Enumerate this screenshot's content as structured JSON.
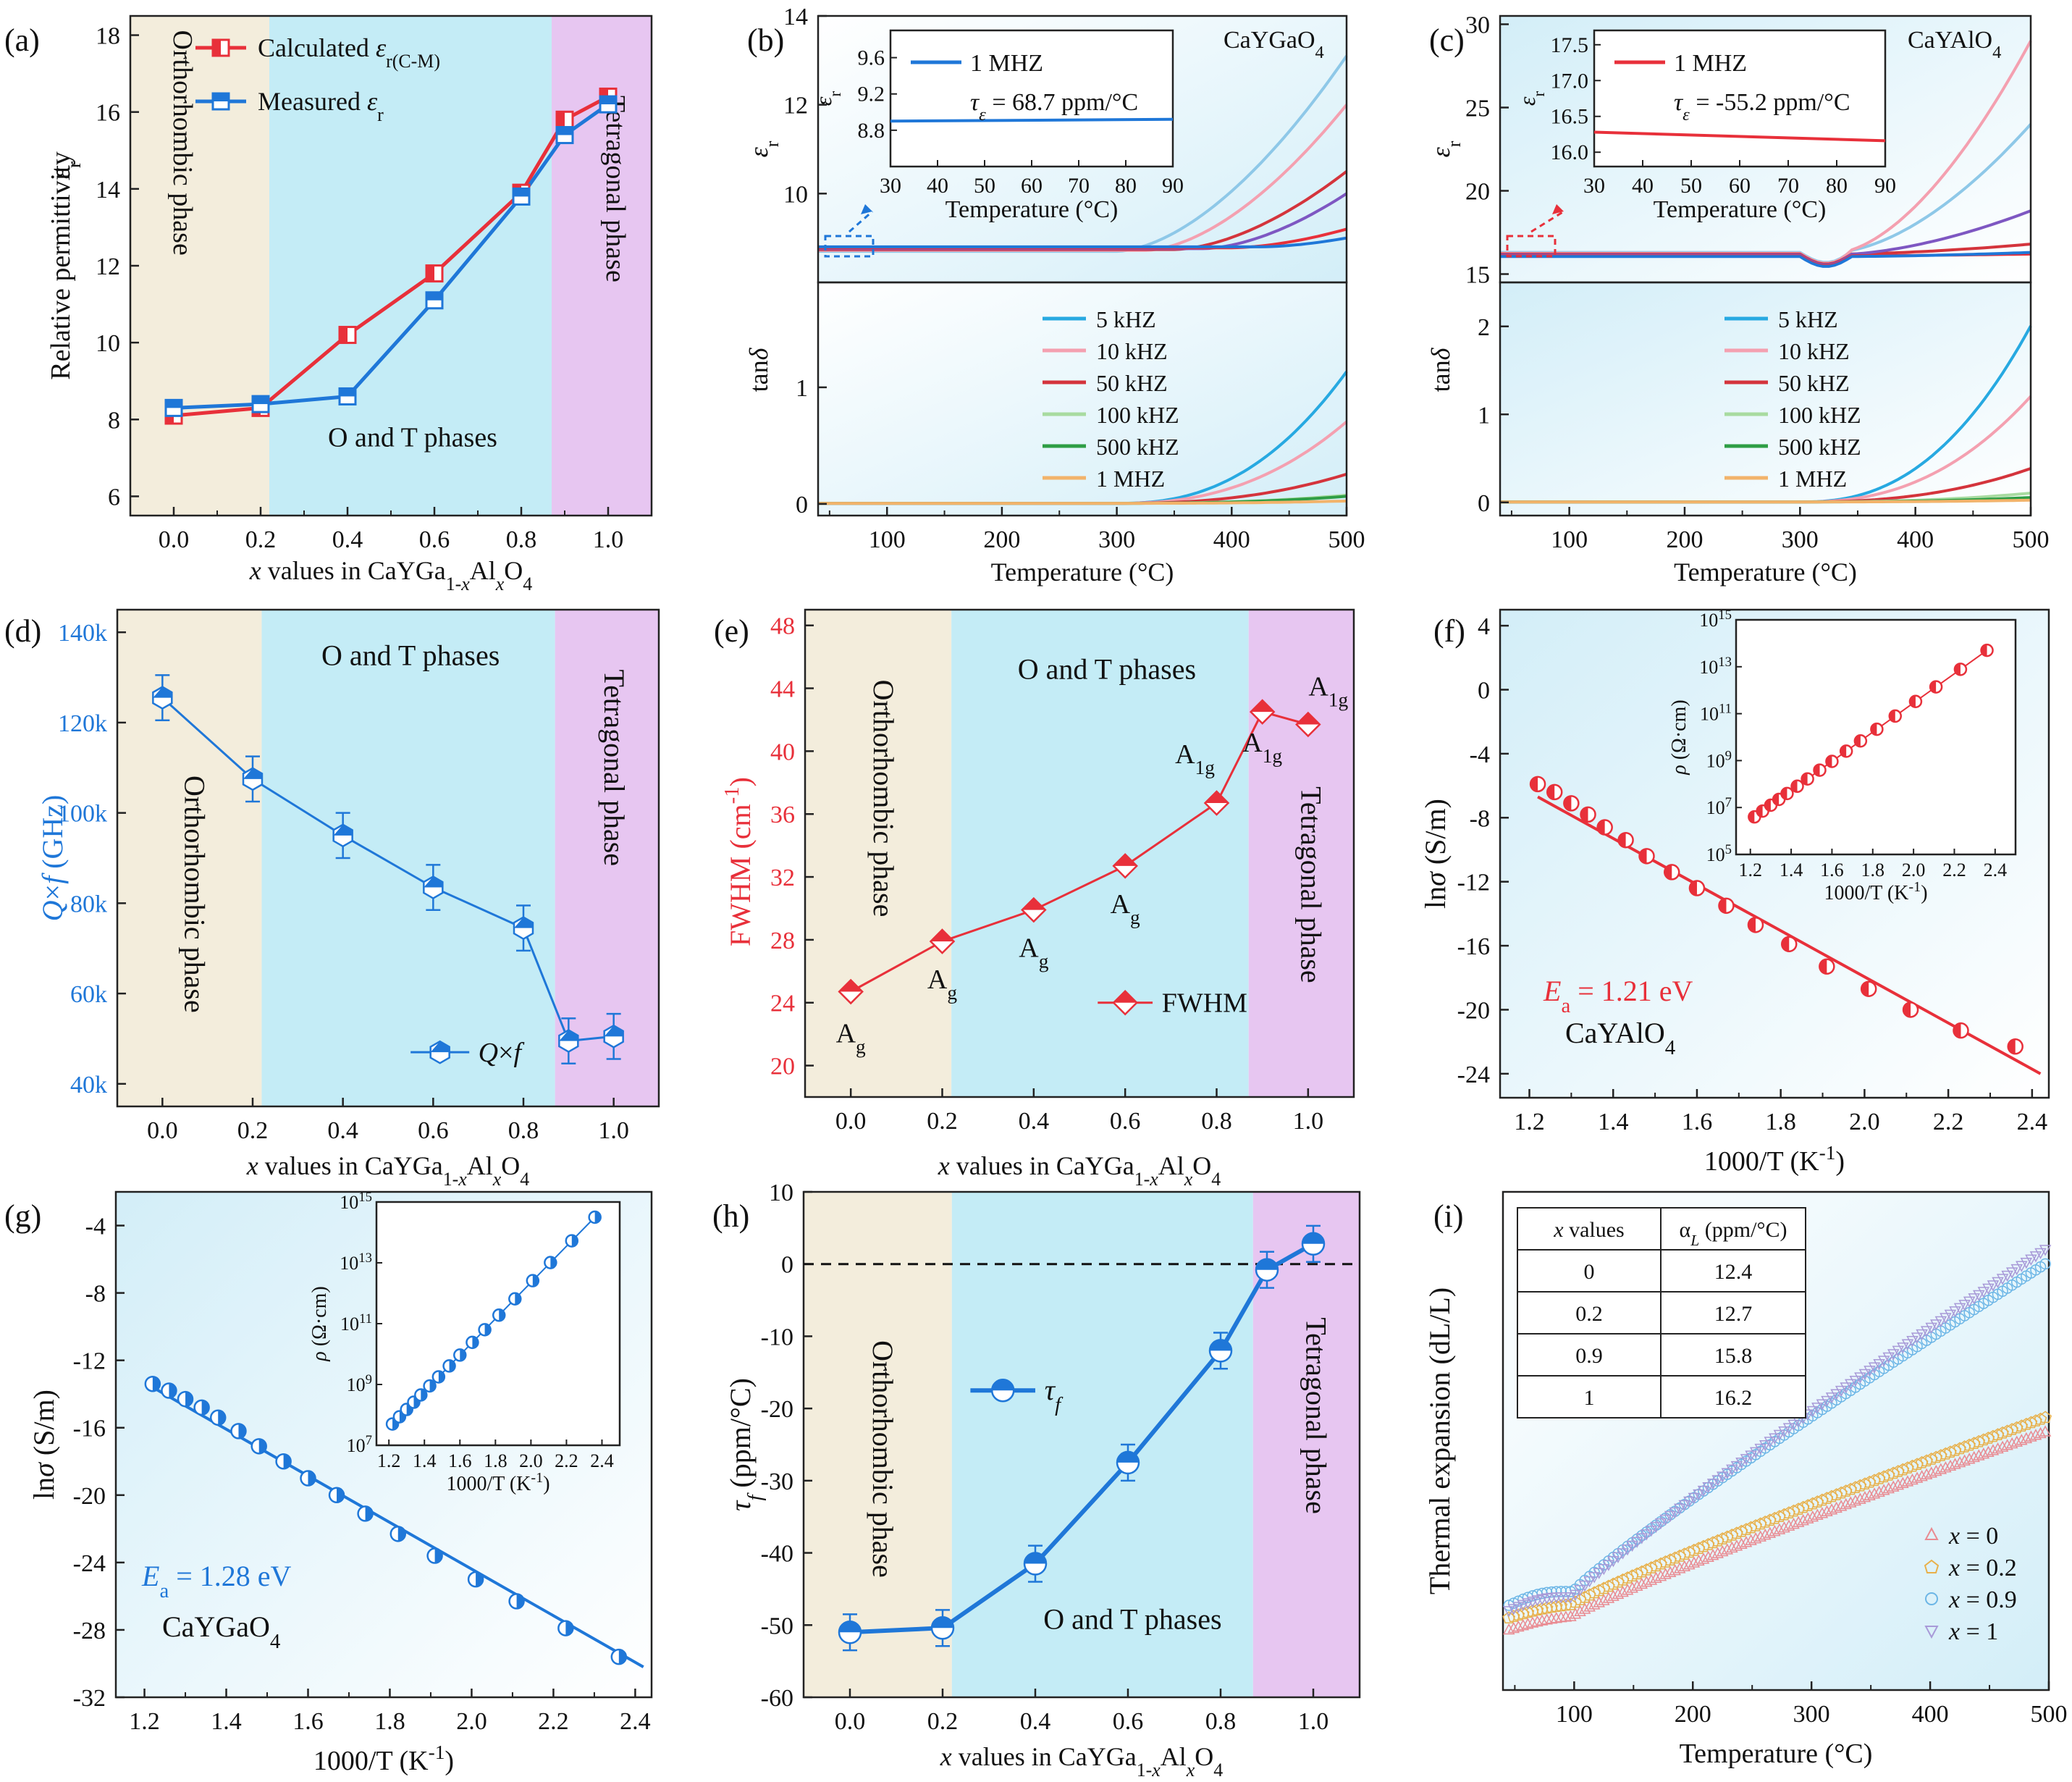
{
  "figure": {
    "panels": [
      "(a)",
      "(b)",
      "(c)",
      "(d)",
      "(e)",
      "(f)",
      "(g)",
      "(h)",
      "(i)"
    ]
  },
  "colors": {
    "red": "#e8303a",
    "blue": "#1f77d8",
    "ortho_bg": "#f3eddc",
    "ot_bg": "#c4ecf6",
    "tetra_bg": "#e7c6f1",
    "pale_blue": "#dff3fa"
  },
  "chart_data": [
    {
      "panel": "(a)",
      "type": "line",
      "xlabel": "x values in CaYGa1-xAlxO4",
      "ylabel": "Relative permittivity εr",
      "xlim": [
        -0.1,
        1.1
      ],
      "ylim": [
        5.5,
        18.5
      ],
      "xticks": [
        "0.0",
        "0.2",
        "0.4",
        "0.6",
        "0.8",
        "1.0"
      ],
      "yticks": [
        "6",
        "8",
        "10",
        "12",
        "14",
        "16",
        "18"
      ],
      "regions": [
        "Orthorhombic phase",
        "O and T phases",
        "Tetragonal phase"
      ],
      "x": [
        0.0,
        0.2,
        0.4,
        0.6,
        0.8,
        0.9,
        1.0
      ],
      "series": [
        {
          "name": "Calculated εr(C-M)",
          "values": [
            8.1,
            8.3,
            10.2,
            11.8,
            13.9,
            15.8,
            16.4
          ]
        },
        {
          "name": "Measured εr",
          "values": [
            8.3,
            8.4,
            8.6,
            11.1,
            13.8,
            15.4,
            16.2
          ]
        }
      ]
    },
    {
      "panel": "(b)",
      "type": "line",
      "compound": "CaYGaO4",
      "xlabel": "Temperature (°C)",
      "ylabel_top": "εr",
      "ylabel_bottom": "tanδ",
      "xticks": [
        "100",
        "200",
        "300",
        "400",
        "500"
      ],
      "yticks_top": [
        "10",
        "12",
        "14"
      ],
      "yticks_bottom": [
        "0",
        "1"
      ],
      "legend": [
        "5 kHZ",
        "10 kHZ",
        "50 kHZ",
        "100 kHZ",
        "500 kHZ",
        "1 MHZ"
      ],
      "inset": {
        "legend": "1 MHZ",
        "tau": "τε = 68.7 ppm/°C",
        "xlabel": "Temperature (°C)",
        "ylabel": "εr",
        "xticks": [
          "30",
          "40",
          "50",
          "60",
          "70",
          "80",
          "90"
        ],
        "yticks": [
          "8.8",
          "9.2",
          "9.6"
        ]
      },
      "eps_at_500C": [
        13.1,
        12.0,
        10.5,
        10.0,
        9.2,
        9.0
      ],
      "tan_at_500C": [
        1.13,
        0.7,
        0.25,
        0.07,
        0.06,
        0.02
      ]
    },
    {
      "panel": "(c)",
      "type": "line",
      "compound": "CaYAlO4",
      "xlabel": "Temperature (°C)",
      "ylabel_top": "εr",
      "ylabel_bottom": "tanδ",
      "xticks": [
        "100",
        "200",
        "300",
        "400",
        "500"
      ],
      "yticks_top": [
        "15",
        "20",
        "25",
        "30"
      ],
      "yticks_bottom": [
        "0",
        "1",
        "2"
      ],
      "legend": [
        "5 kHZ",
        "10 kHZ",
        "50 kHZ",
        "100 kHZ",
        "500 kHZ",
        "1 MHZ"
      ],
      "inset": {
        "legend": "1 MHZ",
        "tau": "τε = -55.2 ppm/°C",
        "xlabel": "Temperature (°C)",
        "ylabel": "εr",
        "xticks": [
          "30",
          "40",
          "50",
          "60",
          "70",
          "80",
          "90"
        ],
        "yticks": [
          "16.0",
          "16.5",
          "17.0",
          "17.5"
        ]
      },
      "eps_at_500C": [
        24.0,
        29.0,
        16.8,
        18.8,
        16.2,
        16.3
      ],
      "tan_at_500C": [
        2.0,
        1.2,
        0.38,
        0.1,
        0.05,
        0.02
      ]
    },
    {
      "panel": "(d)",
      "type": "line",
      "xlabel": "x values in CaYGa1-xAlxO4",
      "ylabel": "Q×f (GHz)",
      "xlim": [
        -0.1,
        1.1
      ],
      "ylim": [
        35000,
        145000
      ],
      "xticks": [
        "0.0",
        "0.2",
        "0.4",
        "0.6",
        "0.8",
        "1.0"
      ],
      "yticks": [
        "40k",
        "60k",
        "80k",
        "100k",
        "120k",
        "140k"
      ],
      "regions": [
        "Orthorhombic phase",
        "O and T phases",
        "Tetragonal phase"
      ],
      "x": [
        0.0,
        0.2,
        0.4,
        0.6,
        0.8,
        0.9,
        1.0
      ],
      "series": [
        {
          "name": "Q×f",
          "values": [
            125500,
            107500,
            95000,
            83500,
            74500,
            49500,
            50500
          ]
        }
      ]
    },
    {
      "panel": "(e)",
      "type": "line",
      "xlabel": "x values in CaYGa1-xAlxO4",
      "ylabel": "FWHM (cm-1)",
      "xlim": [
        -0.1,
        1.1
      ],
      "ylim": [
        18,
        49
      ],
      "xticks": [
        "0.0",
        "0.2",
        "0.4",
        "0.6",
        "0.8",
        "1.0"
      ],
      "yticks": [
        "20",
        "24",
        "28",
        "32",
        "36",
        "40",
        "44",
        "48"
      ],
      "regions": [
        "Orthorhombic phase",
        "O and T phases",
        "Tetragonal phase"
      ],
      "x": [
        0.0,
        0.2,
        0.4,
        0.6,
        0.8,
        0.9,
        1.0
      ],
      "point_labels": [
        "Ag",
        "Ag",
        "Ag",
        "Ag",
        "A1g",
        "A1g",
        "A1g"
      ],
      "series": [
        {
          "name": "FWHM",
          "values": [
            24.7,
            27.9,
            29.9,
            32.7,
            36.7,
            42.5,
            41.7
          ]
        }
      ]
    },
    {
      "panel": "(f)",
      "type": "scatter",
      "compound": "CaYAlO4",
      "Ea": "Ea = 1.21 eV",
      "xlabel": "1000/T (K-1)",
      "ylabel": "lnσ (S/m)",
      "xlim": [
        1.13,
        2.44
      ],
      "ylim": [
        -25.5,
        5
      ],
      "xticks": [
        "1.2",
        "1.4",
        "1.6",
        "1.8",
        "2.0",
        "2.2",
        "2.4"
      ],
      "yticks": [
        "-24",
        "-20",
        "-16",
        "-12",
        "-8",
        "-4",
        "0",
        "4"
      ],
      "x": [
        1.22,
        1.26,
        1.3,
        1.34,
        1.38,
        1.43,
        1.48,
        1.54,
        1.6,
        1.67,
        1.74,
        1.82,
        1.91,
        2.01,
        2.11,
        2.23,
        2.36
      ],
      "values": [
        -5.9,
        -6.4,
        -7.1,
        -7.8,
        -8.6,
        -9.4,
        -10.4,
        -11.4,
        -12.4,
        -13.5,
        -14.7,
        -15.9,
        -17.3,
        -18.7,
        -20.0,
        -21.3,
        -22.3
      ],
      "fit_line": {
        "x": [
          1.22,
          2.42
        ],
        "y": [
          -6.7,
          -24.0
        ]
      },
      "inset": {
        "xlabel": "1000/T (K-1)",
        "ylabel": "ρ (Ω·cm)",
        "xticks": [
          "1.2",
          "1.4",
          "1.6",
          "1.8",
          "2.0",
          "2.2",
          "2.4"
        ],
        "yticks": [
          "10^5",
          "10^7",
          "10^9",
          "10^11",
          "10^13",
          "10^15"
        ]
      }
    },
    {
      "panel": "(g)",
      "type": "scatter",
      "compound": "CaYGaO4",
      "Ea": "Ea = 1.28 eV",
      "xlabel": "1000/T (K-1)",
      "ylabel": "lnσ (S/m)",
      "xlim": [
        1.13,
        2.44
      ],
      "ylim": [
        -32,
        -2
      ],
      "xticks": [
        "1.2",
        "1.4",
        "1.6",
        "1.8",
        "2.0",
        "2.2",
        "2.4"
      ],
      "yticks": [
        "-32",
        "-28",
        "-24",
        "-20",
        "-16",
        "-12",
        "-8",
        "-4"
      ],
      "x": [
        1.22,
        1.26,
        1.3,
        1.34,
        1.38,
        1.43,
        1.48,
        1.54,
        1.6,
        1.67,
        1.74,
        1.82,
        1.91,
        2.01,
        2.11,
        2.23,
        2.36
      ],
      "values": [
        -13.4,
        -13.8,
        -14.3,
        -14.8,
        -15.4,
        -16.2,
        -17.1,
        -18.0,
        -19.0,
        -20.0,
        -21.1,
        -22.3,
        -23.6,
        -25.0,
        -26.3,
        -27.9,
        -29.6
      ],
      "fit_line": {
        "x": [
          1.22,
          2.42
        ],
        "y": [
          -13.6,
          -30.2
        ]
      },
      "inset": {
        "xlabel": "1000/T (K-1)",
        "ylabel": "ρ (Ω·cm)",
        "xticks": [
          "1.2",
          "1.4",
          "1.6",
          "1.8",
          "2.0",
          "2.2",
          "2.4"
        ],
        "yticks": [
          "10^7",
          "10^9",
          "10^11",
          "10^13",
          "10^15"
        ]
      }
    },
    {
      "panel": "(h)",
      "type": "line",
      "xlabel": "x values in CaYGa1-xAlxO4",
      "ylabel": "τf (ppm/°C)",
      "xlim": [
        -0.1,
        1.1
      ],
      "ylim": [
        -60,
        10
      ],
      "xticks": [
        "0.0",
        "0.2",
        "0.4",
        "0.6",
        "0.8",
        "1.0"
      ],
      "yticks": [
        "-60",
        "-50",
        "-40",
        "-30",
        "-20",
        "-10",
        "0",
        "10"
      ],
      "regions": [
        "Orthorhombic phase",
        "O and T phases",
        "Tetragonal phase"
      ],
      "x": [
        0.0,
        0.2,
        0.4,
        0.6,
        0.8,
        0.9,
        1.0
      ],
      "series": [
        {
          "name": "τf",
          "values": [
            -51.0,
            -50.4,
            -41.5,
            -27.5,
            -12.0,
            -0.8,
            2.8
          ]
        }
      ]
    },
    {
      "panel": "(i)",
      "type": "scatter",
      "xlabel": "Temperature (°C)",
      "ylabel": "Thermal expansion (dL/L)",
      "xticks": [
        "100",
        "200",
        "300",
        "400",
        "500"
      ],
      "table": {
        "headers": [
          "x values",
          "αL (ppm/°C)"
        ],
        "rows": [
          [
            "0",
            "12.4"
          ],
          [
            "0.2",
            "12.7"
          ],
          [
            "0.9",
            "15.8"
          ],
          [
            "1",
            "16.2"
          ]
        ]
      },
      "legend": [
        "x = 0",
        "x = 0.2",
        "x = 0.9",
        "x = 1"
      ],
      "alpha_L": [
        12.4,
        12.7,
        15.8,
        16.2
      ]
    }
  ],
  "text": {
    "a": {
      "legend1": "Calculated εr(C-M)",
      "legend2": "Measured εr"
    },
    "b": {
      "compound": "CaYGaO4"
    },
    "c": {
      "compound": "CaYAlO4"
    }
  }
}
